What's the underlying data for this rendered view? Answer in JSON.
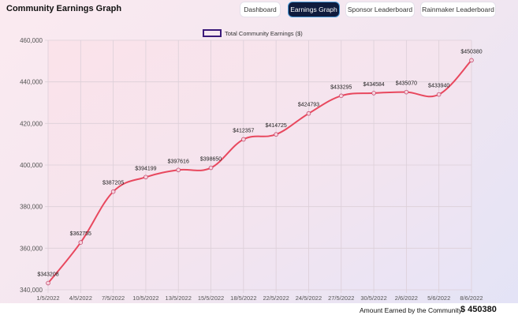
{
  "header": {
    "title": "Community Earnings Graph",
    "nav": [
      {
        "label": "Dashboard",
        "active": false
      },
      {
        "label": "Earnings Graph",
        "active": true
      },
      {
        "label": "Sponsor Leaderboard",
        "active": false
      },
      {
        "label": "Rainmaker Leaderboard",
        "active": false
      }
    ]
  },
  "colors": {
    "line": "#e8485e",
    "legend_border": "#3b1a7a",
    "active_tab": "#0f1b3d"
  },
  "chart_data": {
    "type": "line",
    "legend": "Total Community Earnings ($)",
    "legend_position": "top-center",
    "grid": true,
    "ylim": [
      340000,
      460000
    ],
    "yticks": [
      "340,000",
      "360,000",
      "380,000",
      "400,000",
      "420,000",
      "440,000",
      "460,000"
    ],
    "categories": [
      "1/5/2022",
      "4/5/2022",
      "7/5/2022",
      "10/5/2022",
      "13/5/2022",
      "15/5/2022",
      "18/5/2022",
      "22/5/2022",
      "24/5/2022",
      "27/5/2022",
      "30/5/2022",
      "2/6/2022",
      "5/6/2022",
      "8/6/2022"
    ],
    "series": [
      {
        "values": [
          343208,
          362755,
          387205,
          394199,
          397616,
          398650,
          412357,
          414725,
          424793,
          433295,
          434584,
          435070,
          433940,
          450380
        ],
        "data_labels": [
          "$343208",
          "$362755",
          "$387205",
          "$394199",
          "$397616",
          "$398650",
          "$412357",
          "$414725",
          "$424793",
          "$433295",
          "$434584",
          "$435070",
          "$433940",
          "$450380"
        ]
      }
    ]
  },
  "footer": {
    "label": "Amount Earned by the Community",
    "value": "$ 450380"
  }
}
